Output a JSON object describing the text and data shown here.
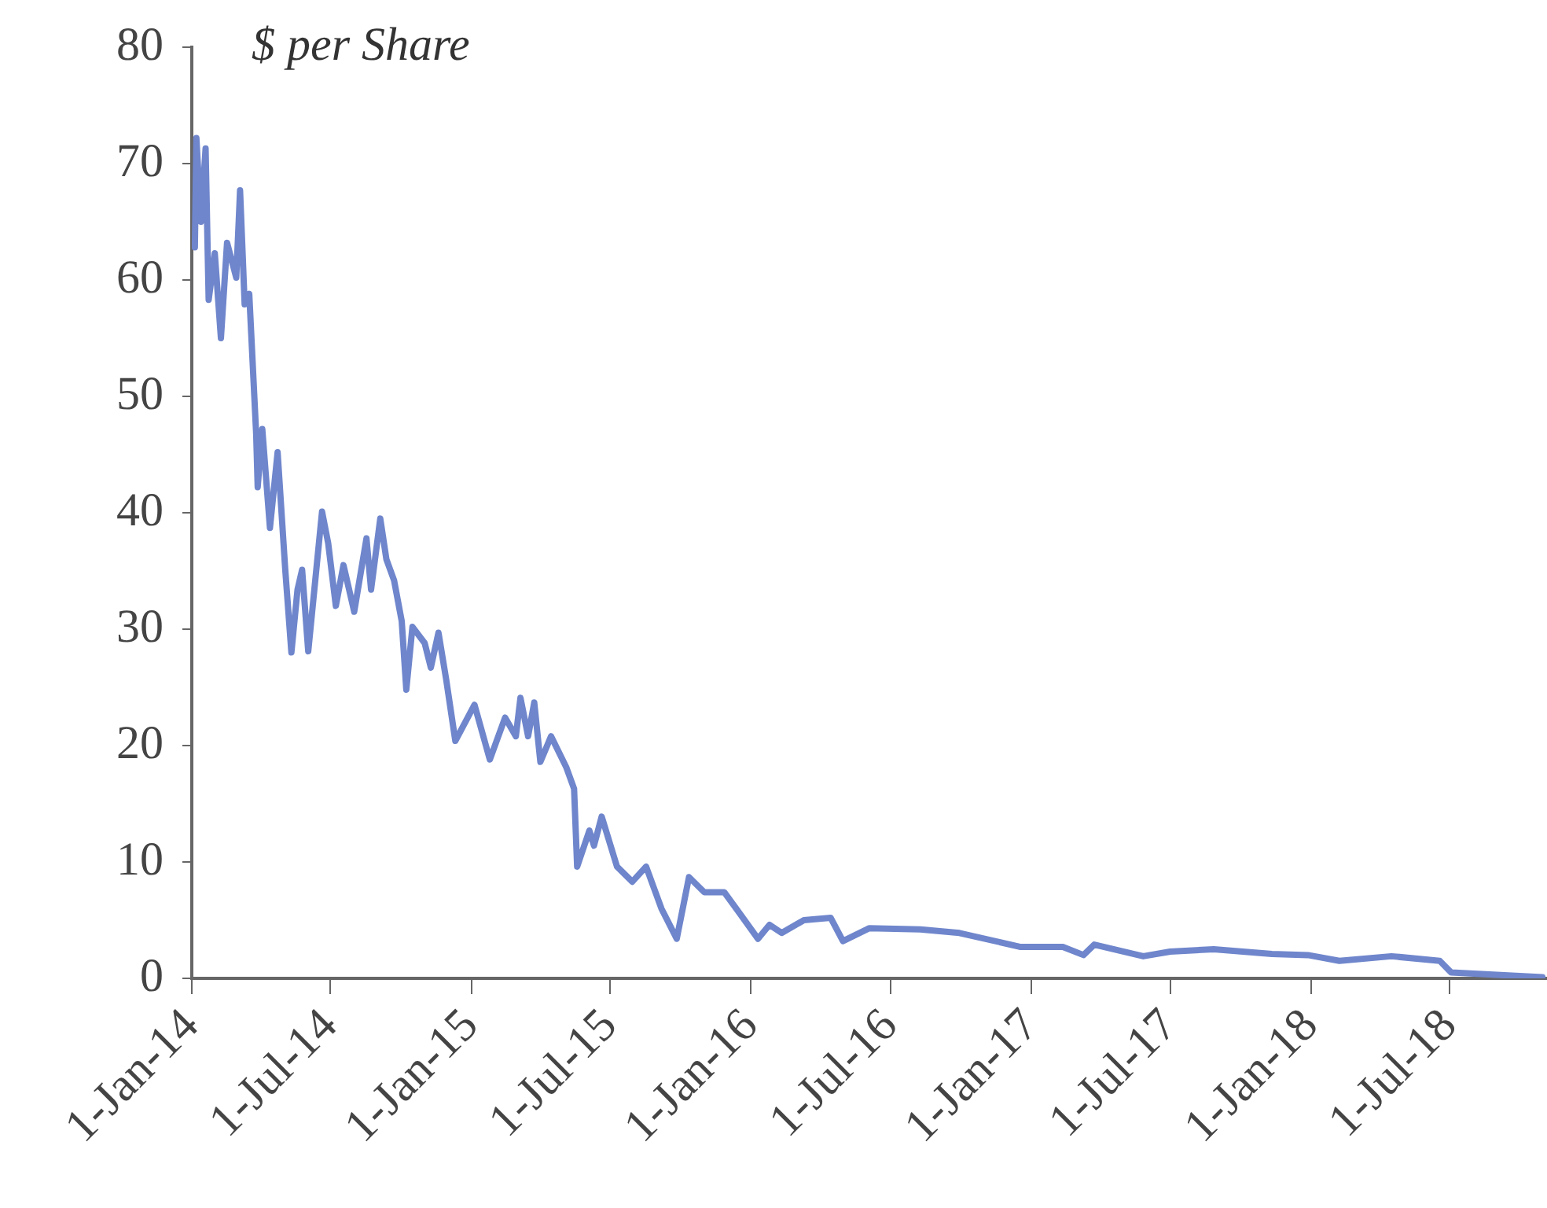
{
  "chart_data": {
    "type": "line",
    "ylabel": "$ per Share",
    "x": [
      "2014-01-05",
      "2014-01-07",
      "2014-01-13",
      "2014-01-19",
      "2014-01-23",
      "2014-01-31",
      "2014-02-08",
      "2014-02-16",
      "2014-02-28",
      "2014-03-05",
      "2014-03-11",
      "2014-03-17",
      "2014-03-26",
      "2014-03-28",
      "2014-04-03",
      "2014-04-13",
      "2014-04-23",
      "2014-05-03",
      "2014-05-11",
      "2014-05-19",
      "2014-05-25",
      "2014-06-02",
      "2014-06-20",
      "2014-06-28",
      "2014-07-08",
      "2014-07-18",
      "2014-08-01",
      "2014-08-17",
      "2014-08-23",
      "2014-09-04",
      "2014-09-12",
      "2014-09-22",
      "2014-10-02",
      "2014-10-08",
      "2014-10-16",
      "2014-11-01",
      "2014-11-09",
      "2014-11-19",
      "2014-11-29",
      "2014-12-11",
      "2015-01-05",
      "2015-01-25",
      "2015-02-14",
      "2015-02-28",
      "2015-03-06",
      "2015-03-16",
      "2015-03-24",
      "2015-04-01",
      "2015-04-15",
      "2015-05-05",
      "2015-05-15",
      "2015-05-19",
      "2015-06-04",
      "2015-06-10",
      "2015-06-20",
      "2015-07-10",
      "2015-07-30",
      "2015-08-17",
      "2015-09-06",
      "2015-09-26",
      "2015-10-12",
      "2015-11-01",
      "2015-11-27",
      "2015-12-17",
      "2016-01-10",
      "2016-01-25",
      "2016-02-10",
      "2016-03-10",
      "2016-04-14",
      "2016-04-30",
      "2016-06-03",
      "2016-08-09",
      "2016-09-29",
      "2016-12-18",
      "2017-02-11",
      "2017-03-10",
      "2017-03-24",
      "2017-05-27",
      "2017-07-01",
      "2017-08-27",
      "2017-11-11",
      "2017-12-28",
      "2018-02-07",
      "2018-04-16",
      "2018-06-18",
      "2018-07-03",
      "2018-10-30"
    ],
    "series": [
      {
        "color": "#6f86cc",
        "values": [
          62.8,
          72.2,
          65,
          71.3,
          58.3,
          62.3,
          55,
          63.2,
          60.2,
          67.7,
          57.9,
          58.8,
          46.8,
          42.2,
          47.2,
          38.7,
          45.2,
          35.1,
          28,
          33.4,
          35.1,
          28.1,
          40.1,
          37.4,
          32,
          35.5,
          31.5,
          37.8,
          33.4,
          39.5,
          36,
          34.2,
          30.7,
          24.8,
          30.2,
          28.8,
          26.7,
          29.7,
          25.7,
          20.4,
          23.5,
          18.8,
          22.4,
          20.8,
          24.1,
          20.8,
          23.7,
          18.6,
          20.8,
          18.1,
          16.3,
          9.6,
          12.7,
          11.4,
          13.9,
          9.6,
          8.3,
          9.6,
          6,
          3.4,
          8.7,
          7.4,
          7.4,
          5.6,
          3.4,
          4.6,
          3.9,
          5,
          5.2,
          3.2,
          4.3,
          4.2,
          3.9,
          2.7,
          2.7,
          2,
          2.9,
          1.9,
          2.3,
          2.5,
          2.1,
          2,
          1.5,
          1.9,
          1.5,
          0.5,
          0.1
        ]
      }
    ],
    "xlim": [
      "2014-01-01",
      "2018-11-05"
    ],
    "xticks": [
      {
        "value": "2014-01-01",
        "label": "1-Jan-14"
      },
      {
        "value": "2014-07-01",
        "label": "1-Jul-14"
      },
      {
        "value": "2015-01-01",
        "label": "1-Jan-15"
      },
      {
        "value": "2015-07-01",
        "label": "1-Jul-15"
      },
      {
        "value": "2016-01-01",
        "label": "1-Jan-16"
      },
      {
        "value": "2016-07-01",
        "label": "1-Jul-16"
      },
      {
        "value": "2017-01-01",
        "label": "1-Jan-17"
      },
      {
        "value": "2017-07-01",
        "label": "1-Jul-17"
      },
      {
        "value": "2018-01-01",
        "label": "1-Jan-18"
      },
      {
        "value": "2018-07-01",
        "label": "1-Jul-18"
      }
    ],
    "ylim": [
      0,
      80
    ],
    "yticks": [
      0,
      10,
      20,
      30,
      40,
      50,
      60,
      70,
      80
    ],
    "grid": false,
    "legend": false,
    "marker": "none",
    "line_style": "solid"
  }
}
